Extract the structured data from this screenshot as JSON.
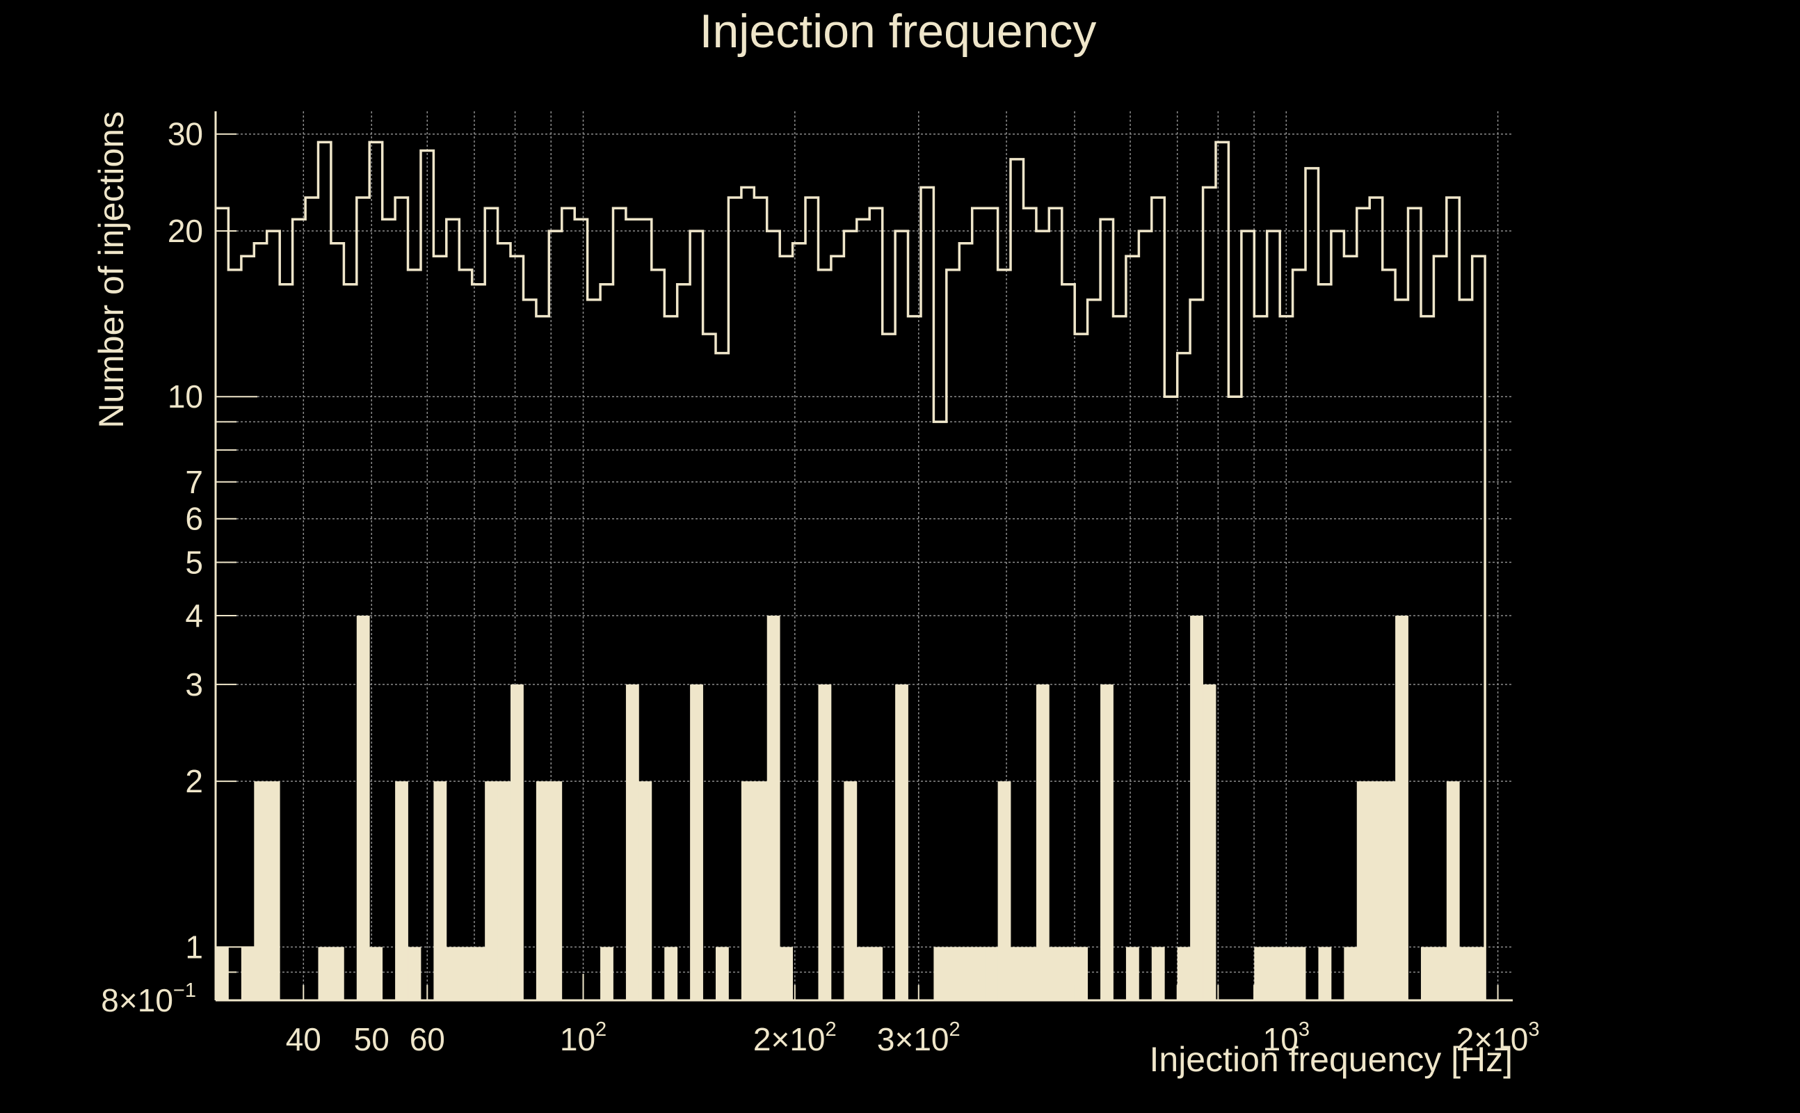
{
  "colors": {
    "background": "#000000",
    "foreground": "#efe6ca",
    "grid": "#8c8c8c"
  },
  "chart_data": {
    "type": "bar",
    "title": "Injection frequency",
    "xlabel": "Injection frequency [Hz]",
    "ylabel": "Number of injections",
    "x_scale": "log",
    "y_scale": "log",
    "xlim": [
      30,
      2100
    ],
    "ylim": [
      0.8,
      33
    ],
    "grid": true,
    "x_ticks": [
      {
        "value": 40,
        "label": "40"
      },
      {
        "value": 50,
        "label": "50"
      },
      {
        "value": 60,
        "label": "60"
      },
      {
        "value": 100,
        "label": "10",
        "sup": "2"
      },
      {
        "value": 200,
        "label": "2×10",
        "sup": "2"
      },
      {
        "value": 300,
        "label": "3×10",
        "sup": "2"
      },
      {
        "value": 1000,
        "label": "10",
        "sup": "3"
      },
      {
        "value": 2000,
        "label": "2×10",
        "sup": "3"
      }
    ],
    "y_ticks": [
      {
        "value": 0.8,
        "label": "8×10",
        "sup": "−1"
      },
      {
        "value": 1,
        "label": "1"
      },
      {
        "value": 2,
        "label": "2"
      },
      {
        "value": 3,
        "label": "3"
      },
      {
        "value": 4,
        "label": "4"
      },
      {
        "value": 5,
        "label": "5"
      },
      {
        "value": 6,
        "label": "6"
      },
      {
        "value": 7,
        "label": "7"
      },
      {
        "value": 10,
        "label": "10"
      },
      {
        "value": 20,
        "label": "20"
      },
      {
        "value": 30,
        "label": "30"
      }
    ],
    "bin_edges": {
      "min": 30,
      "max": 2000,
      "count": 100
    },
    "series": [
      {
        "style": "step-outline",
        "values": [
          22,
          17,
          18,
          19,
          20,
          16,
          21,
          23,
          29,
          19,
          16,
          23,
          29,
          21,
          23,
          17,
          28,
          18,
          21,
          17,
          16,
          22,
          19,
          18,
          15,
          14,
          20,
          22,
          21,
          15,
          16,
          22,
          21,
          21,
          17,
          14,
          16,
          20,
          13,
          12,
          23,
          24,
          23,
          20,
          18,
          19,
          23,
          17,
          18,
          20,
          21,
          22,
          13,
          20,
          14,
          24,
          9,
          17,
          19,
          22,
          22,
          17,
          27,
          22,
          20,
          22,
          16,
          13,
          15,
          21,
          14,
          18,
          20,
          23,
          10,
          12,
          15,
          24,
          29,
          10,
          20,
          14,
          20,
          14,
          17,
          26,
          16,
          20,
          18,
          22,
          23,
          17,
          15,
          22,
          14,
          18,
          23,
          15,
          18
        ]
      },
      {
        "style": "filled",
        "values": [
          1,
          0,
          1,
          2,
          2,
          0,
          0,
          0,
          1,
          1,
          0,
          4,
          1,
          0,
          2,
          1,
          0,
          2,
          1,
          1,
          1,
          2,
          2,
          3,
          0,
          2,
          2,
          0,
          0,
          0,
          1,
          0,
          3,
          2,
          0,
          1,
          0,
          3,
          0,
          1,
          0,
          2,
          2,
          4,
          1,
          0,
          0,
          3,
          0,
          2,
          1,
          1,
          0,
          3,
          0,
          0,
          1,
          1,
          1,
          1,
          1,
          2,
          1,
          1,
          3,
          1,
          1,
          1,
          0,
          3,
          0,
          1,
          0,
          1,
          0,
          1,
          4,
          3,
          0,
          0,
          0,
          1,
          1,
          1,
          1,
          0,
          1,
          0,
          1,
          2,
          2,
          2,
          4,
          0,
          1,
          1,
          2,
          1,
          1
        ]
      }
    ]
  }
}
